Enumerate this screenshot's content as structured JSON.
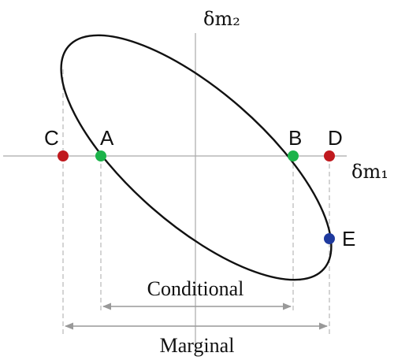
{
  "axes": {
    "y_label": "δm₂",
    "x_label": "δm₁"
  },
  "points": [
    {
      "id": "C",
      "label": "C",
      "color": "#c0191e"
    },
    {
      "id": "A",
      "label": "A",
      "color": "#1cb34a"
    },
    {
      "id": "B",
      "label": "B",
      "color": "#1cb34a"
    },
    {
      "id": "D",
      "label": "D",
      "color": "#c0191e"
    },
    {
      "id": "E",
      "label": "E",
      "color": "#1f3a9e"
    }
  ],
  "spans": {
    "conditional": "Conditional",
    "marginal": "Marginal"
  },
  "colors": {
    "ellipse": "#111111",
    "axis": "#aaaaaa",
    "span_arrow": "#999999"
  }
}
